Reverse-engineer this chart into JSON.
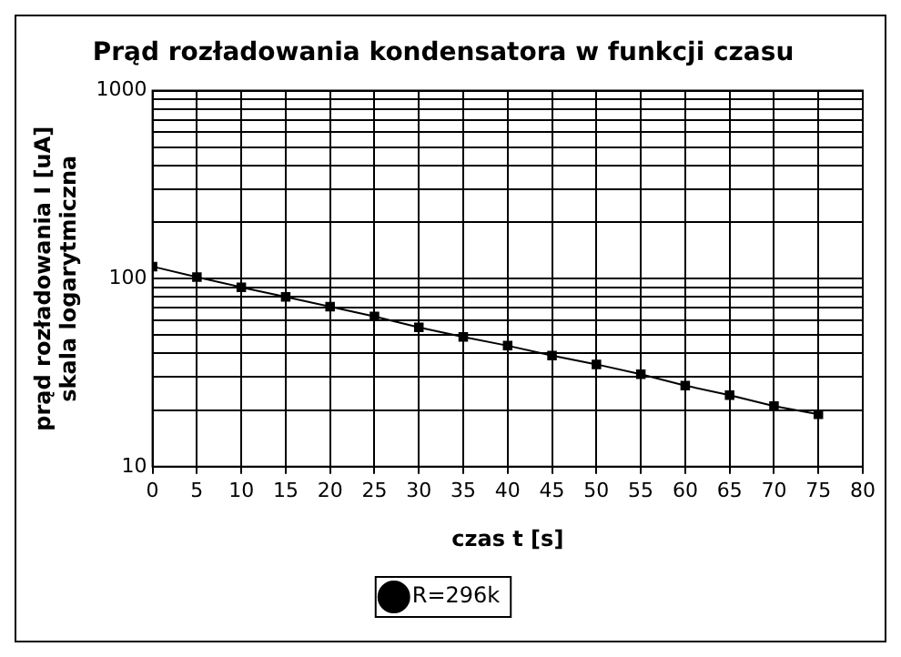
{
  "chart_data": {
    "type": "line",
    "title": "Prąd rozładowania kondensatora w funkcji czasu",
    "xlabel": "czas t [s]",
    "ylabel": "prąd rozładowania I [uA]\nskala logarytmiczna",
    "x": [
      0,
      5,
      10,
      15,
      20,
      25,
      30,
      35,
      40,
      45,
      50,
      55,
      60,
      65,
      70,
      75
    ],
    "series": [
      {
        "name": "R=296k",
        "color": "#000000",
        "values": [
          116,
          102,
          90,
          80,
          71,
          63,
          55,
          49,
          44,
          39,
          35,
          31,
          27,
          24,
          21,
          19
        ]
      }
    ],
    "xlim": [
      0,
      80
    ],
    "xticks": [
      0,
      5,
      10,
      15,
      20,
      25,
      30,
      35,
      40,
      45,
      50,
      55,
      60,
      65,
      70,
      75,
      80
    ],
    "ylim": [
      10,
      1000
    ],
    "yticks": [
      10,
      {
        "value": 20,
        "label": null
      },
      {
        "value": 30,
        "label": null
      },
      {
        "value": 40,
        "label": null
      },
      {
        "value": 50,
        "label": null
      },
      {
        "value": 60,
        "label": null
      },
      {
        "value": 70,
        "label": null
      },
      {
        "value": 80,
        "label": null
      },
      {
        "value": 90,
        "label": null
      },
      100,
      {
        "value": 200,
        "label": null
      },
      {
        "value": 300,
        "label": null
      },
      {
        "value": 400,
        "label": null
      },
      {
        "value": 500,
        "label": null
      },
      {
        "value": 600,
        "label": null
      },
      {
        "value": 700,
        "label": null
      },
      {
        "value": 800,
        "label": null
      },
      {
        "value": 900,
        "label": null
      },
      1000
    ],
    "log": "y",
    "grid": true,
    "legend": "bottom",
    "marker": "square",
    "line_style": "solid"
  }
}
